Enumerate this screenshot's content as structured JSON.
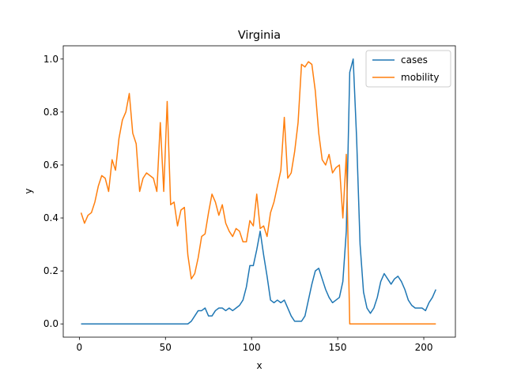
{
  "chart_data": {
    "type": "line",
    "title": "Virginia",
    "x_label": "x",
    "y_label": "y",
    "x": [
      1,
      3,
      5,
      7,
      9,
      11,
      13,
      15,
      17,
      19,
      21,
      23,
      25,
      27,
      29,
      31,
      33,
      35,
      37,
      39,
      41,
      43,
      45,
      47,
      49,
      51,
      53,
      55,
      57,
      59,
      61,
      63,
      65,
      67,
      69,
      71,
      73,
      75,
      77,
      79,
      81,
      83,
      85,
      87,
      89,
      91,
      93,
      95,
      97,
      99,
      101,
      103,
      105,
      107,
      109,
      111,
      113,
      115,
      117,
      119,
      121,
      123,
      125,
      127,
      129,
      131,
      133,
      135,
      137,
      139,
      141,
      143,
      145,
      147,
      149,
      151,
      153,
      155,
      157,
      159,
      161,
      163,
      165,
      167,
      169,
      171,
      173,
      175,
      177,
      179,
      181,
      183,
      185,
      187,
      189,
      191,
      193,
      195,
      197,
      199,
      201,
      203,
      205,
      207
    ],
    "series": [
      {
        "name": "cases",
        "color": "#1f77b4",
        "values": [
          0,
          0,
          0,
          0,
          0,
          0,
          0,
          0,
          0,
          0,
          0,
          0,
          0,
          0,
          0,
          0,
          0,
          0,
          0,
          0,
          0,
          0,
          0,
          0,
          0,
          0,
          0,
          0,
          0,
          0,
          0,
          0,
          0.01,
          0.03,
          0.05,
          0.05,
          0.06,
          0.03,
          0.03,
          0.05,
          0.06,
          0.06,
          0.05,
          0.06,
          0.05,
          0.06,
          0.07,
          0.09,
          0.14,
          0.22,
          0.22,
          0.28,
          0.35,
          0.26,
          0.18,
          0.09,
          0.08,
          0.09,
          0.08,
          0.09,
          0.06,
          0.03,
          0.01,
          0.01,
          0.01,
          0.03,
          0.09,
          0.15,
          0.2,
          0.21,
          0.17,
          0.13,
          0.1,
          0.08,
          0.09,
          0.1,
          0.16,
          0.35,
          0.95,
          1.0,
          0.7,
          0.3,
          0.12,
          0.06,
          0.04,
          0.06,
          0.1,
          0.16,
          0.19,
          0.17,
          0.15,
          0.17,
          0.18,
          0.16,
          0.13,
          0.09,
          0.07,
          0.06,
          0.06,
          0.06,
          0.05,
          0.08,
          0.1,
          0.13
        ]
      },
      {
        "name": "mobility",
        "color": "#ff7f0e",
        "values": [
          0.42,
          0.38,
          0.41,
          0.42,
          0.46,
          0.52,
          0.56,
          0.55,
          0.5,
          0.62,
          0.58,
          0.7,
          0.77,
          0.8,
          0.87,
          0.72,
          0.68,
          0.5,
          0.55,
          0.57,
          0.56,
          0.55,
          0.5,
          0.76,
          0.5,
          0.84,
          0.45,
          0.46,
          0.37,
          0.43,
          0.44,
          0.26,
          0.17,
          0.19,
          0.25,
          0.33,
          0.34,
          0.42,
          0.49,
          0.46,
          0.41,
          0.45,
          0.38,
          0.35,
          0.33,
          0.36,
          0.35,
          0.31,
          0.31,
          0.39,
          0.37,
          0.49,
          0.36,
          0.37,
          0.33,
          0.42,
          0.46,
          0.52,
          0.58,
          0.78,
          0.55,
          0.57,
          0.65,
          0.76,
          0.98,
          0.97,
          0.99,
          0.98,
          0.88,
          0.72,
          0.62,
          0.6,
          0.64,
          0.57,
          0.59,
          0.6,
          0.4,
          0.64,
          0,
          0,
          0,
          0,
          0,
          0,
          0,
          0,
          0,
          0,
          0,
          0,
          0,
          0,
          0,
          0,
          0,
          0,
          0,
          0,
          0,
          0,
          0,
          0,
          0,
          0
        ]
      }
    ],
    "xlim": [
      -9.35,
      218.35
    ],
    "xticks": [
      0,
      50,
      100,
      150,
      200
    ],
    "ylim": [
      -0.05,
      1.05
    ],
    "yticks": [
      {
        "value": 0,
        "label": "0.0"
      },
      0.2,
      0.4,
      0.6,
      0.8,
      {
        "value": 1,
        "label": "1.0"
      }
    ],
    "grid": false,
    "legend": "upper right"
  }
}
